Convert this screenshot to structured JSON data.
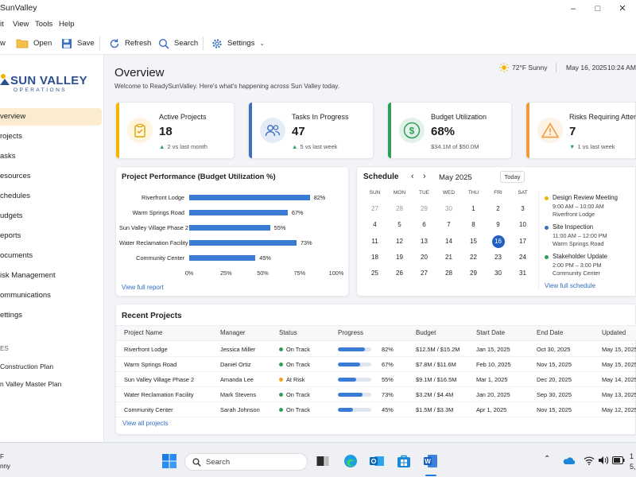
{
  "window": {
    "title": "SunValley"
  },
  "menu": {
    "items": [
      "it",
      "View",
      "Tools",
      "Help"
    ]
  },
  "toolbar": {
    "new_label": "w",
    "open_label": "Open",
    "save_label": "Save",
    "refresh_label": "Refresh",
    "search_label": "Search",
    "settings_label": "Settings"
  },
  "brand": {
    "name": "SUN VALLEY",
    "sub": "OPERATIONS"
  },
  "sidebar": {
    "items": [
      {
        "label": "verview",
        "active": true
      },
      {
        "label": "rojects"
      },
      {
        "label": "asks"
      },
      {
        "label": "esources"
      },
      {
        "label": "chedules"
      },
      {
        "label": "udgets"
      },
      {
        "label": "eports"
      },
      {
        "label": "ocuments"
      },
      {
        "label": "isk Management"
      },
      {
        "label": "ommunications"
      },
      {
        "label": "ettings"
      }
    ],
    "section_label": "ES",
    "pinned": [
      {
        "label": "Construction Plan"
      },
      {
        "label": "n Valley Master Plan"
      }
    ]
  },
  "header": {
    "title": "Overview",
    "subtitle": "Welcome to ReadySunValley. Here's what's happening across Sun Valley today.",
    "weather": "72°F  Sunny",
    "date": "May 16, 2025",
    "time": "10:24 AM"
  },
  "kpis": [
    {
      "label": "Active Projects",
      "value": "18",
      "delta": "2 vs last month",
      "trend": "up",
      "color": "#f4b400"
    },
    {
      "label": "Tasks In Progress",
      "value": "47",
      "delta": "5 vs last week",
      "trend": "up",
      "color": "#3a6fc1"
    },
    {
      "label": "Budget Utilization",
      "value": "68%",
      "delta": "$34.1M of $50.0M",
      "trend": "none",
      "color": "#2e9e5b"
    },
    {
      "label": "Risks Requiring Attention",
      "value": "7",
      "delta": "1 vs last week",
      "trend": "down",
      "color": "#f29a38"
    }
  ],
  "chart_data": {
    "type": "bar",
    "orientation": "horizontal",
    "title": "Project Performance (Budget Utilization %)",
    "categories": [
      "Riverfront Lodge",
      "Warm Springs Road",
      "Sun Valley Village Phase 2",
      "Water Reclamation Facility",
      "Community Center"
    ],
    "values": [
      82,
      67,
      55,
      73,
      45
    ],
    "value_labels": [
      "82%",
      "67%",
      "55%",
      "73%",
      "45%"
    ],
    "xticks": [
      "0%",
      "25%",
      "50%",
      "75%",
      "100%"
    ],
    "xlim": [
      0,
      100
    ],
    "grid": false,
    "color": "#3a7bd5",
    "footer_link": "View full report"
  },
  "schedule": {
    "title": "Schedule",
    "month": "May 2025",
    "today_label": "Today",
    "weekdays": [
      "SUN",
      "MON",
      "TUE",
      "WED",
      "THU",
      "FRI",
      "SAT"
    ],
    "weeks": [
      [
        "27",
        "28",
        "29",
        "30",
        "1",
        "2",
        "3"
      ],
      [
        "4",
        "5",
        "6",
        "7",
        "8",
        "9",
        "10"
      ],
      [
        "11",
        "12",
        "13",
        "14",
        "15",
        "16",
        "17"
      ],
      [
        "18",
        "19",
        "20",
        "21",
        "22",
        "23",
        "24"
      ],
      [
        "25",
        "26",
        "27",
        "28",
        "29",
        "30",
        "31"
      ]
    ],
    "selected": "16",
    "events": [
      {
        "title": "Design Review Meeting",
        "time": "9:00 AM – 10:00 AM",
        "place": "Riverfront Lodge",
        "color": "#f4b400"
      },
      {
        "title": "Site Inspection",
        "time": "11:00 AM – 12:00 PM",
        "place": "Warm Springs Road",
        "color": "#3a6fc1"
      },
      {
        "title": "Stakeholder Update",
        "time": "2:00 PM – 3:00 PM",
        "place": "Community Center",
        "color": "#2e9e5b"
      }
    ],
    "footer_link": "View full schedule"
  },
  "recent": {
    "title": "Recent Projects",
    "columns": [
      "Project Name",
      "Manager",
      "Status",
      "Progress",
      "Budget",
      "Start Date",
      "End Date",
      "Updated"
    ],
    "rows": [
      {
        "name": "Riverfront Lodge",
        "manager": "Jessica Miller",
        "status": "On Track",
        "status_color": "#2e9e5b",
        "progress": 82,
        "progress_label": "82%",
        "budget": "$12.5M / $15.2M",
        "start": "Jan 15, 2025",
        "end": "Oct 30, 2025",
        "updated": "May 15, 2025"
      },
      {
        "name": "Warm Springs Road",
        "manager": "Daniel Ortiz",
        "status": "On Track",
        "status_color": "#2e9e5b",
        "progress": 67,
        "progress_label": "67%",
        "budget": "$7.8M / $11.6M",
        "start": "Feb 10, 2025",
        "end": "Nov 15, 2025",
        "updated": "May 15, 2025"
      },
      {
        "name": "Sun Valley Village Phase 2",
        "manager": "Amanda Lee",
        "status": "At Risk",
        "status_color": "#f4a21a",
        "progress": 55,
        "progress_label": "55%",
        "budget": "$9.1M / $16.5M",
        "start": "Mar 1, 2025",
        "end": "Dec 20, 2025",
        "updated": "May 14, 2025"
      },
      {
        "name": "Water Reclamation Facility",
        "manager": "Mark Stevens",
        "status": "On Track",
        "status_color": "#2e9e5b",
        "progress": 73,
        "progress_label": "73%",
        "budget": "$3.2M / $4.4M",
        "start": "Jan 20, 2025",
        "end": "Sep 30, 2025",
        "updated": "May 13, 2025"
      },
      {
        "name": "Community Center",
        "manager": "Sarah Johnson",
        "status": "On Track",
        "status_color": "#2e9e5b",
        "progress": 45,
        "progress_label": "45%",
        "budget": "$1.5M / $3.3M",
        "start": "Apr 1, 2025",
        "end": "Nov 15, 2025",
        "updated": "May 12, 2025"
      }
    ],
    "footer_link": "View all projects"
  },
  "taskbar": {
    "weather_temp": "F",
    "weather_cond": "nny",
    "search_placeholder": "Search",
    "clock_time": "1",
    "clock_date": "5,"
  }
}
